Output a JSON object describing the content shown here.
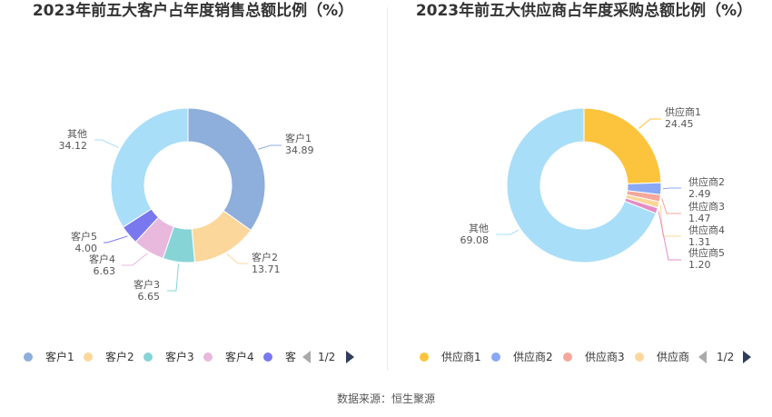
{
  "source": "数据来源：恒生聚源",
  "chart_data": [
    {
      "type": "pie",
      "title": "2023年前五大客户占年度销售总额比例（%）",
      "donut": true,
      "categories": [
        "客户1",
        "客户2",
        "客户3",
        "客户4",
        "客户5",
        "其他"
      ],
      "values": [
        34.89,
        13.71,
        6.65,
        6.63,
        4.0,
        34.12
      ],
      "value_labels": [
        "34.89",
        "13.71",
        "6.65",
        "6.63",
        "4.00",
        "34.12"
      ],
      "colors": [
        "#8eaedb",
        "#fcd79b",
        "#86d4d6",
        "#e8b8dd",
        "#7a78ee",
        "#a9def8"
      ],
      "legend": {
        "items": [
          "客户1",
          "客户2",
          "客户3",
          "客户4",
          "客"
        ],
        "page": "1/2",
        "placement": "bottom"
      }
    },
    {
      "type": "pie",
      "title": "2023年前五大供应商占年度采购总额比例（%）",
      "donut": true,
      "categories": [
        "供应商1",
        "供应商2",
        "供应商3",
        "供应商4",
        "供应商5",
        "其他"
      ],
      "values": [
        24.45,
        2.49,
        1.47,
        1.31,
        1.2,
        69.08
      ],
      "value_labels": [
        "24.45",
        "2.49",
        "1.47",
        "1.31",
        "1.20",
        "69.08"
      ],
      "colors": [
        "#fcc43c",
        "#8aa8f5",
        "#f4a79a",
        "#fcd79b",
        "#e58cc6",
        "#a9def8"
      ],
      "legend": {
        "items": [
          "供应商1",
          "供应商2",
          "供应商3",
          "供应商"
        ],
        "page": "1/2",
        "placement": "bottom"
      }
    }
  ]
}
